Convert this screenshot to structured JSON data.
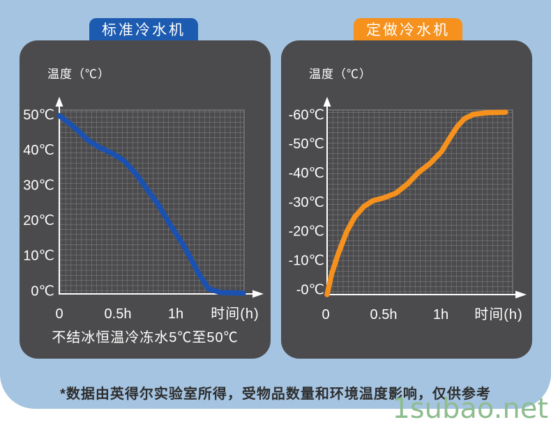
{
  "page": {
    "background_color": "#a5c4e1",
    "panel_color": "#4b4b4d",
    "footer_note": "*数据由英得尔实验室所得，受物品数量和环境温度影响，仅供参考",
    "watermark": "1subao.net",
    "watermark_color": "#8dbd8f"
  },
  "left_panel": {
    "tab_label": "标准冷水机",
    "tab_color": "#1d5bb0",
    "y_axis_title": "温度（℃）",
    "y_ticks": [
      "50℃",
      "40℃",
      "30℃",
      "20℃",
      "10℃",
      "0℃"
    ],
    "x_ticks": [
      "0",
      "0.5h",
      "1h"
    ],
    "x_axis_title": "时间(h)",
    "caption": "不结冰恒温冷冻水5℃至50℃",
    "line_color": "#1b52b1"
  },
  "right_panel": {
    "tab_label": "定做冷水机",
    "tab_color": "#f5911c",
    "y_axis_title": "温度（℃）",
    "y_ticks": [
      "-60℃",
      "-50℃",
      "-40℃",
      "-30℃",
      "-20℃",
      "-10℃",
      "-0℃"
    ],
    "x_ticks": [
      "0",
      "0.5h",
      "1h"
    ],
    "x_axis_title": "时间(h)",
    "line_color": "#f5911c"
  },
  "chart_data": [
    {
      "type": "line",
      "title": "标准冷水机",
      "xlabel": "时间(h)",
      "ylabel": "温度（℃）",
      "x_range": [
        0,
        1.6
      ],
      "y_range": [
        0,
        50
      ],
      "y_tick_values": [
        50,
        40,
        30,
        20,
        10,
        0
      ],
      "x_tick_values": [
        0,
        0.5,
        1
      ],
      "grid": true,
      "legend": "none",
      "line_color": "#1b52b1",
      "x": [
        0,
        0.08,
        0.17,
        0.25,
        0.35,
        0.45,
        0.55,
        0.65,
        0.75,
        0.85,
        0.95,
        1.05,
        1.12,
        1.2,
        1.28,
        1.38,
        1.58
      ],
      "y": [
        50,
        48,
        45.5,
        43,
        41,
        39.5,
        37.5,
        34,
        29.5,
        25,
        19.5,
        14.5,
        10.5,
        5.5,
        1.5,
        0.4,
        0.2
      ]
    },
    {
      "type": "line",
      "title": "定做冷水机",
      "xlabel": "时间(h)",
      "ylabel": "温度（℃）",
      "x_range": [
        0,
        1.6
      ],
      "y_range": [
        0,
        -60
      ],
      "y_tick_values": [
        -60,
        -50,
        -40,
        -30,
        -20,
        -10,
        0
      ],
      "x_tick_values": [
        0,
        0.5,
        1
      ],
      "grid": true,
      "legend": "none",
      "line_color": "#f5911c",
      "x": [
        0,
        0.04,
        0.1,
        0.17,
        0.24,
        0.32,
        0.4,
        0.5,
        0.6,
        0.7,
        0.8,
        0.9,
        1.0,
        1.08,
        1.14,
        1.2,
        1.28,
        1.4,
        1.56
      ],
      "y": [
        0,
        -7,
        -14,
        -21,
        -26,
        -29.5,
        -31.5,
        -32.5,
        -34,
        -37,
        -41,
        -44,
        -48,
        -53,
        -56.5,
        -59,
        -60.5,
        -61,
        -61.2
      ]
    }
  ]
}
